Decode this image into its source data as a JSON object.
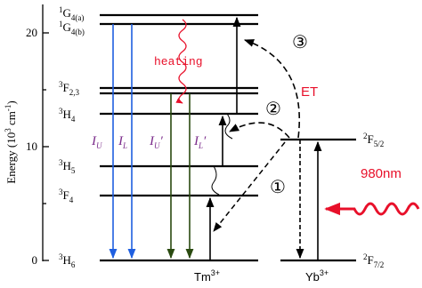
{
  "axis": {
    "title": {
      "main": "Energy (10",
      "exp": "3",
      "unit": " cm",
      "unit_exp": "-1",
      "close": ")"
    },
    "ticks": [
      "0",
      "10",
      "20"
    ]
  },
  "levels": [
    {
      "sup": "1",
      "main": "G",
      "sub": "4(a)"
    },
    {
      "sup": "1",
      "main": "G",
      "sub": "4(b)"
    },
    {
      "sup": "3",
      "main": "F",
      "sub": "2,3"
    },
    {
      "sup": "3",
      "main": "H",
      "sub": "4"
    },
    {
      "sup": "3",
      "main": "H",
      "sub": "5"
    },
    {
      "sup": "3",
      "main": "F",
      "sub": "4"
    },
    {
      "sup": "3",
      "main": "H",
      "sub": "6"
    },
    {
      "sup": "2",
      "main": "F",
      "sub": "5/2"
    },
    {
      "sup": "2",
      "main": "F",
      "sub": "7/2"
    }
  ],
  "transitions": [
    {
      "main": "I",
      "sub": "U",
      "prime": ""
    },
    {
      "main": "I",
      "sub": "L",
      "prime": ""
    },
    {
      "main": "I",
      "sub": "U",
      "prime": "′"
    },
    {
      "main": "I",
      "sub": "L",
      "prime": "′"
    }
  ],
  "annotations": {
    "heating": "heating",
    "et": "ET",
    "laser": "980nm",
    "steps": [
      "①",
      "②",
      "③"
    ]
  },
  "ions": [
    {
      "main": "Tm",
      "charge": "3+"
    },
    {
      "main": "Yb",
      "charge": "3+"
    }
  ]
}
